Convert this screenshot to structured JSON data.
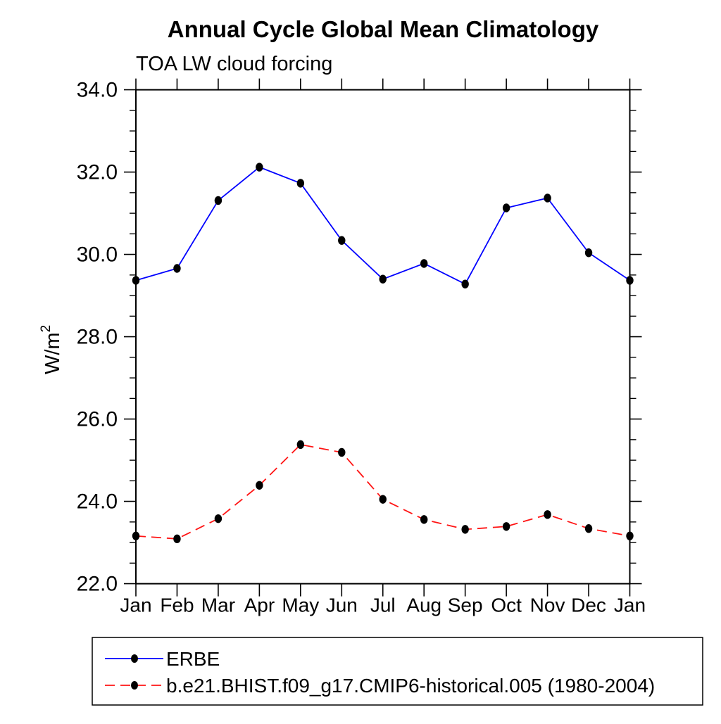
{
  "chart_data": {
    "type": "line",
    "title": "Annual Cycle Global Mean Climatology",
    "subtitle": "TOA LW cloud forcing",
    "ylabel_base": "W/m",
    "ylabel_superscript": "2",
    "xlabel": "",
    "categories": [
      "Jan",
      "Feb",
      "Mar",
      "Apr",
      "May",
      "Jun",
      "Jul",
      "Aug",
      "Sep",
      "Oct",
      "Nov",
      "Dec",
      "Jan"
    ],
    "ylim": [
      22.0,
      34.0
    ],
    "ytick_interval": 2.0,
    "yminor_interval": 0.5,
    "ytick_labels": [
      "22.0",
      "24.0",
      "26.0",
      "28.0",
      "30.0",
      "32.0",
      "34.0"
    ],
    "grid": false,
    "legend_position": "bottom-left-box",
    "axis_color": "#000000",
    "background_color": "#ffffff",
    "series": [
      {
        "name": "ERBE",
        "color": "#0000ff",
        "line_style": "solid",
        "marker": "filled-circle",
        "marker_color": "#000000",
        "values": [
          29.37,
          29.66,
          31.31,
          32.12,
          31.73,
          30.34,
          29.4,
          29.78,
          29.28,
          31.13,
          31.37,
          30.04,
          29.37
        ]
      },
      {
        "name": "b.e21.BHIST.f09_g17.CMIP6-historical.005 (1980-2004)",
        "color": "#ff1414",
        "line_style": "dashed",
        "marker": "filled-circle",
        "marker_color": "#000000",
        "values": [
          23.16,
          23.09,
          23.58,
          24.39,
          25.38,
          25.19,
          24.05,
          23.56,
          23.32,
          23.39,
          23.68,
          23.34,
          23.16
        ]
      }
    ]
  }
}
